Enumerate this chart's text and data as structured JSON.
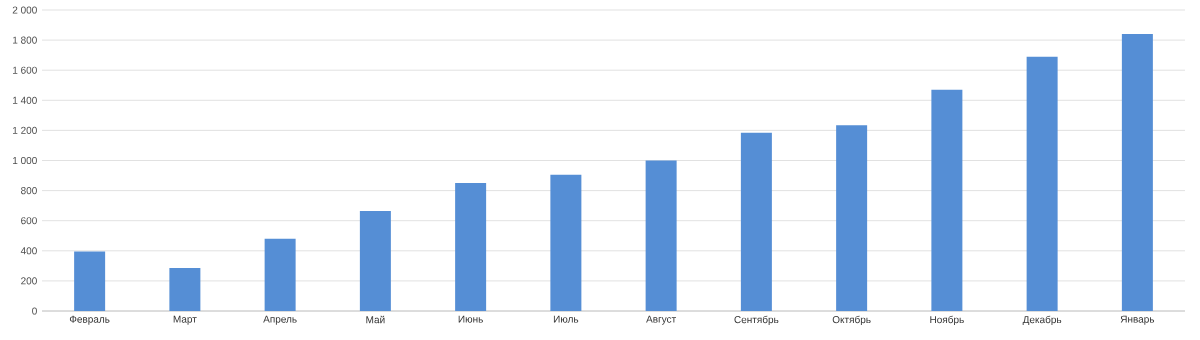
{
  "chart_data": {
    "type": "bar",
    "categories": [
      "Февраль",
      "Март",
      "Апрель",
      "Май",
      "Июнь",
      "Июль",
      "Август",
      "Сентябрь",
      "Октябрь",
      "Ноябрь",
      "Декабрь",
      "Январь"
    ],
    "values": [
      395,
      285,
      480,
      665,
      850,
      905,
      1000,
      1185,
      1235,
      1470,
      1690,
      1840
    ],
    "color": "#558ed5",
    "ylim": [
      0,
      2000
    ],
    "yticks": [
      0,
      200,
      400,
      600,
      800,
      {
        "value": 1000,
        "label": "1 000"
      },
      {
        "value": 1200,
        "label": "1 200"
      },
      {
        "value": 1400,
        "label": "1 400"
      },
      {
        "value": 1600,
        "label": "1 600"
      },
      {
        "value": 1800,
        "label": "1 800"
      },
      {
        "value": 2000,
        "label": "2 000"
      }
    ],
    "grid": "y"
  }
}
